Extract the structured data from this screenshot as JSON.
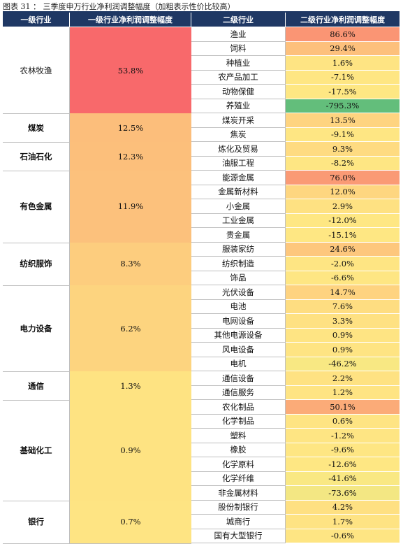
{
  "caption": "图表 31 ： 三季度申万行业净利润调整幅度（加粗表示性价比较高）",
  "headers": [
    "一级行业",
    "一级行业净利润调整幅度",
    "二级行业",
    "二级行业净利润调整幅度"
  ],
  "colors": {
    "header_bg": "#1f3864",
    "red": "#f8696b",
    "orange_dark": "#fa9574",
    "orange": "#fcbe7b",
    "orange_light": "#fdd17e",
    "yellow": "#fee483",
    "yellow_light": "#feea84",
    "green": "#63be7b"
  },
  "groups": [
    {
      "name": "农林牧渔",
      "bold": false,
      "value": "53.8%",
      "color": "#f8696b",
      "subs": [
        {
          "name": "渔业",
          "value": "86.6%",
          "color": "#fa9574"
        },
        {
          "name": "饲料",
          "value": "29.4%",
          "color": "#fdc07c"
        },
        {
          "name": "种植业",
          "value": "1.6%",
          "color": "#fee483"
        },
        {
          "name": "农产品加工",
          "value": "-7.1%",
          "color": "#fee683"
        },
        {
          "name": "动物保健",
          "value": "-17.5%",
          "color": "#fee783"
        },
        {
          "name": "养殖业",
          "value": "-795.3%",
          "color": "#63be7b"
        }
      ]
    },
    {
      "name": "煤炭",
      "bold": true,
      "value": "12.5%",
      "color": "#fcbe7b",
      "subs": [
        {
          "name": "煤炭开采",
          "value": "13.5%",
          "color": "#fed480"
        },
        {
          "name": "焦炭",
          "value": "-9.1%",
          "color": "#fee683"
        }
      ]
    },
    {
      "name": "石油石化",
      "bold": true,
      "value": "12.3%",
      "color": "#fcbf7b",
      "subs": [
        {
          "name": "炼化及贸易",
          "value": "9.3%",
          "color": "#fedb81"
        },
        {
          "name": "油服工程",
          "value": "-8.2%",
          "color": "#fee683"
        }
      ]
    },
    {
      "name": "有色金属",
      "bold": true,
      "value": "11.9%",
      "color": "#fcc17c",
      "subs": [
        {
          "name": "能源金属",
          "value": "76.0%",
          "color": "#fa9a75"
        },
        {
          "name": "金属新材料",
          "value": "12.0%",
          "color": "#fed680"
        },
        {
          "name": "小金属",
          "value": "2.9%",
          "color": "#fee182"
        },
        {
          "name": "工业金属",
          "value": "-12.0%",
          "color": "#fee783"
        },
        {
          "name": "贵金属",
          "value": "-15.1%",
          "color": "#fee783"
        }
      ]
    },
    {
      "name": "纺织服饰",
      "bold": true,
      "value": "8.3%",
      "color": "#fdcd7e",
      "subs": [
        {
          "name": "服装家纺",
          "value": "24.6%",
          "color": "#fdc77d"
        },
        {
          "name": "纺织制造",
          "value": "-2.0%",
          "color": "#fee583"
        },
        {
          "name": "饰品",
          "value": "-6.6%",
          "color": "#fee683"
        }
      ]
    },
    {
      "name": "电力设备",
      "bold": true,
      "value": "6.2%",
      "color": "#fdd47f",
      "subs": [
        {
          "name": "光伏设备",
          "value": "14.7%",
          "color": "#fed380"
        },
        {
          "name": "电池",
          "value": "7.6%",
          "color": "#fedd81"
        },
        {
          "name": "电网设备",
          "value": "3.3%",
          "color": "#fee182"
        },
        {
          "name": "其他电源设备",
          "value": "0.9%",
          "color": "#fee483"
        },
        {
          "name": "风电设备",
          "value": "0.9%",
          "color": "#fee483"
        },
        {
          "name": "电机",
          "value": "-46.2%",
          "color": "#f8e883"
        }
      ]
    },
    {
      "name": "通信",
      "bold": true,
      "value": "1.3%",
      "color": "#fee382",
      "subs": [
        {
          "name": "通信设备",
          "value": "2.2%",
          "color": "#fee282"
        },
        {
          "name": "通信服务",
          "value": "1.2%",
          "color": "#fee483"
        }
      ]
    },
    {
      "name": "基础化工",
      "bold": true,
      "value": "0.9%",
      "color": "#fee382",
      "subs": [
        {
          "name": "农化制品",
          "value": "50.1%",
          "color": "#fbab78"
        },
        {
          "name": "化学制品",
          "value": "0.6%",
          "color": "#fee483"
        },
        {
          "name": "塑料",
          "value": "-1.2%",
          "color": "#fee583"
        },
        {
          "name": "橡胶",
          "value": "-9.6%",
          "color": "#fee683"
        },
        {
          "name": "化学原料",
          "value": "-12.6%",
          "color": "#fee783"
        },
        {
          "name": "化学纤维",
          "value": "-41.6%",
          "color": "#f9e883"
        },
        {
          "name": "非金属材料",
          "value": "-73.6%",
          "color": "#f3e783"
        }
      ]
    },
    {
      "name": "银行",
      "bold": true,
      "value": "0.7%",
      "color": "#fee483",
      "subs": [
        {
          "name": "股份制银行",
          "value": "4.2%",
          "color": "#fee082"
        },
        {
          "name": "城商行",
          "value": "1.7%",
          "color": "#fee383"
        },
        {
          "name": "国有大型银行",
          "value": "-0.6%",
          "color": "#fee583"
        }
      ]
    }
  ]
}
